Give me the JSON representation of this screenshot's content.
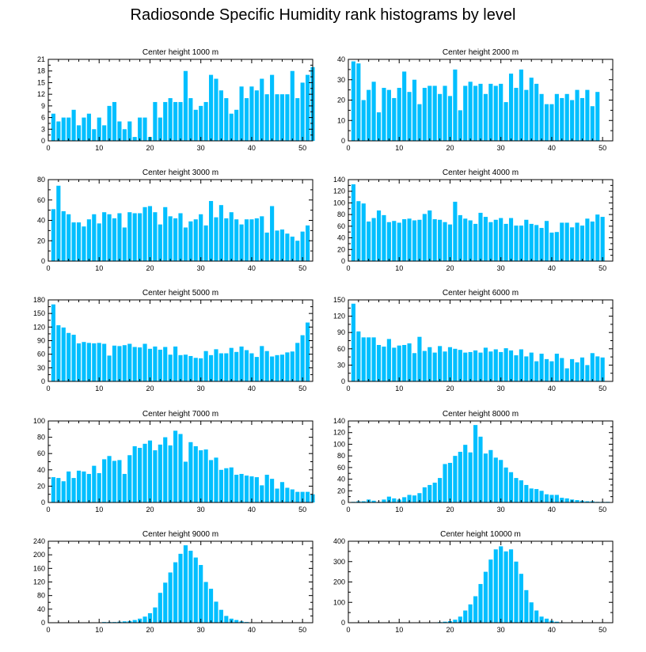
{
  "figure": {
    "title": "Radiosonde Specific Humidity rank histograms by level",
    "bar_color": "#00bfff"
  },
  "chart_data": [
    {
      "type": "bar",
      "title": "Center height 1000 m",
      "x_start": 1,
      "xlim": [
        0,
        52
      ],
      "xticks": [
        0,
        10,
        20,
        30,
        40,
        50
      ],
      "ylim": [
        0,
        21
      ],
      "yticks": [
        0,
        3,
        6,
        9,
        12,
        15,
        18,
        21
      ],
      "values": [
        7,
        5,
        6,
        6,
        8,
        4,
        6,
        7,
        3,
        6,
        4,
        9,
        10,
        5,
        3,
        5,
        1,
        6,
        6,
        1,
        10,
        6,
        10,
        11,
        10,
        10,
        18,
        11,
        8,
        9,
        10,
        17,
        16,
        13,
        11,
        7,
        8,
        14,
        11,
        14,
        13,
        16,
        12,
        17,
        12,
        12,
        12,
        18,
        11,
        15,
        17,
        19
      ]
    },
    {
      "type": "bar",
      "title": "Center height 2000 m",
      "x_start": 1,
      "xlim": [
        0,
        52
      ],
      "xticks": [
        0,
        10,
        20,
        30,
        40,
        50
      ],
      "ylim": [
        0,
        40
      ],
      "yticks": [
        0,
        10,
        20,
        30,
        40
      ],
      "values": [
        39,
        38,
        20,
        25,
        29,
        14,
        26,
        25,
        21,
        26,
        34,
        24,
        30,
        18,
        26,
        27,
        27,
        23,
        27,
        22,
        35,
        15,
        27,
        29,
        27,
        28,
        23,
        28,
        27,
        28,
        19,
        33,
        26,
        35,
        25,
        31,
        28,
        23,
        18,
        18,
        23,
        21,
        23,
        20,
        25,
        21,
        25,
        17,
        24
      ]
    },
    {
      "type": "bar",
      "title": "Center height 3000 m",
      "x_start": 1,
      "xlim": [
        0,
        52
      ],
      "xticks": [
        0,
        10,
        20,
        30,
        40,
        50
      ],
      "ylim": [
        0,
        80
      ],
      "yticks": [
        0,
        20,
        40,
        60,
        80
      ],
      "values": [
        51,
        74,
        49,
        46,
        38,
        38,
        34,
        41,
        46,
        37,
        48,
        46,
        42,
        47,
        33,
        48,
        47,
        47,
        53,
        54,
        48,
        36,
        53,
        44,
        42,
        47,
        33,
        39,
        41,
        46,
        35,
        59,
        43,
        55,
        42,
        48,
        41,
        36,
        41,
        41,
        42,
        44,
        28,
        54,
        30,
        31,
        27,
        24,
        20,
        29,
        35
      ]
    },
    {
      "type": "bar",
      "title": "Center height 4000 m",
      "x_start": 1,
      "xlim": [
        0,
        52
      ],
      "xticks": [
        0,
        10,
        20,
        30,
        40,
        50
      ],
      "ylim": [
        0,
        140
      ],
      "yticks": [
        0,
        20,
        40,
        60,
        80,
        100,
        120,
        140
      ],
      "values": [
        132,
        103,
        99,
        68,
        74,
        87,
        79,
        67,
        69,
        66,
        72,
        73,
        70,
        71,
        81,
        87,
        72,
        71,
        67,
        63,
        102,
        79,
        73,
        70,
        64,
        83,
        76,
        67,
        71,
        74,
        64,
        74,
        61,
        61,
        71,
        64,
        62,
        57,
        69,
        49,
        50,
        66,
        66,
        58,
        66,
        61,
        73,
        68,
        80,
        76
      ]
    },
    {
      "type": "bar",
      "title": "Center height 5000 m",
      "x_start": 1,
      "xlim": [
        0,
        52
      ],
      "xticks": [
        0,
        10,
        20,
        30,
        40,
        50
      ],
      "ylim": [
        0,
        180
      ],
      "yticks": [
        0,
        30,
        60,
        90,
        120,
        150,
        180
      ],
      "values": [
        170,
        124,
        119,
        107,
        103,
        84,
        87,
        85,
        84,
        85,
        83,
        57,
        79,
        78,
        80,
        83,
        76,
        75,
        83,
        72,
        77,
        70,
        76,
        59,
        77,
        58,
        59,
        56,
        52,
        51,
        67,
        58,
        71,
        62,
        62,
        74,
        65,
        77,
        69,
        62,
        54,
        78,
        67,
        55,
        58,
        59,
        64,
        66,
        85,
        102,
        130
      ]
    },
    {
      "type": "bar",
      "title": "Center height 6000 m",
      "x_start": 1,
      "xlim": [
        0,
        52
      ],
      "xticks": [
        0,
        10,
        20,
        30,
        40,
        50
      ],
      "ylim": [
        0,
        150
      ],
      "yticks": [
        0,
        30,
        60,
        90,
        120,
        150
      ],
      "values": [
        143,
        92,
        81,
        81,
        81,
        67,
        64,
        78,
        62,
        66,
        67,
        70,
        52,
        82,
        56,
        63,
        53,
        65,
        55,
        63,
        60,
        58,
        53,
        54,
        57,
        53,
        62,
        55,
        59,
        54,
        61,
        57,
        48,
        59,
        46,
        53,
        37,
        51,
        41,
        37,
        51,
        43,
        24,
        41,
        35,
        44,
        30,
        52,
        46,
        44
      ]
    },
    {
      "type": "bar",
      "title": "Center height 7000 m",
      "x_start": 1,
      "xlim": [
        0,
        52
      ],
      "xticks": [
        0,
        10,
        20,
        30,
        40,
        50
      ],
      "ylim": [
        0,
        100
      ],
      "yticks": [
        0,
        20,
        40,
        60,
        80,
        100
      ],
      "values": [
        31,
        30,
        26,
        38,
        30,
        39,
        38,
        35,
        45,
        36,
        53,
        57,
        51,
        52,
        35,
        58,
        69,
        67,
        72,
        76,
        64,
        71,
        80,
        70,
        88,
        84,
        50,
        74,
        69,
        64,
        65,
        52,
        55,
        40,
        42,
        43,
        34,
        35,
        33,
        32,
        31,
        21,
        34,
        29,
        17,
        25,
        18,
        16,
        13,
        13,
        13,
        10
      ]
    },
    {
      "type": "bar",
      "title": "Center height 8000 m",
      "x_start": 1,
      "xlim": [
        0,
        52
      ],
      "xticks": [
        0,
        10,
        20,
        30,
        40,
        50
      ],
      "ylim": [
        0,
        140
      ],
      "yticks": [
        0,
        20,
        40,
        60,
        80,
        100,
        120,
        140
      ],
      "values": [
        1,
        2,
        2,
        5,
        3,
        1,
        5,
        10,
        7,
        5,
        9,
        13,
        12,
        16,
        26,
        30,
        34,
        42,
        66,
        68,
        80,
        87,
        99,
        86,
        133,
        113,
        84,
        90,
        77,
        73,
        60,
        52,
        42,
        38,
        30,
        24,
        23,
        20,
        14,
        13,
        13,
        8,
        7,
        5,
        4,
        3,
        2,
        2,
        1,
        1,
        1
      ]
    },
    {
      "type": "bar",
      "title": "Center height 9000 m",
      "x_start": 1,
      "xlim": [
        0,
        52
      ],
      "xticks": [
        0,
        10,
        20,
        30,
        40,
        50
      ],
      "ylim": [
        0,
        240
      ],
      "yticks": [
        0,
        40,
        80,
        120,
        160,
        200,
        240
      ],
      "values": [
        1,
        1,
        1,
        1,
        1,
        1,
        1,
        1,
        1,
        1,
        2,
        2,
        2,
        3,
        4,
        5,
        8,
        12,
        18,
        28,
        45,
        88,
        118,
        148,
        178,
        203,
        228,
        212,
        192,
        170,
        120,
        100,
        62,
        38,
        20,
        12,
        8,
        4,
        2,
        1,
        1,
        1,
        0,
        0,
        0,
        0,
        0,
        0,
        0,
        0
      ]
    },
    {
      "type": "bar",
      "title": "Center height 10000 m",
      "x_start": 1,
      "xlim": [
        0,
        52
      ],
      "xticks": [
        0,
        10,
        20,
        30,
        40,
        50
      ],
      "ylim": [
        0,
        400
      ],
      "yticks": [
        0,
        100,
        200,
        300,
        400
      ],
      "values": [
        0,
        0,
        0,
        0,
        0,
        0,
        0,
        0,
        0,
        0,
        0,
        0,
        0,
        0,
        0,
        1,
        2,
        3,
        5,
        8,
        15,
        30,
        60,
        90,
        130,
        190,
        250,
        310,
        360,
        375,
        350,
        360,
        300,
        240,
        160,
        100,
        60,
        30,
        20,
        10,
        5,
        2,
        1,
        1,
        0,
        0,
        0,
        0,
        0,
        0,
        0
      ]
    }
  ]
}
